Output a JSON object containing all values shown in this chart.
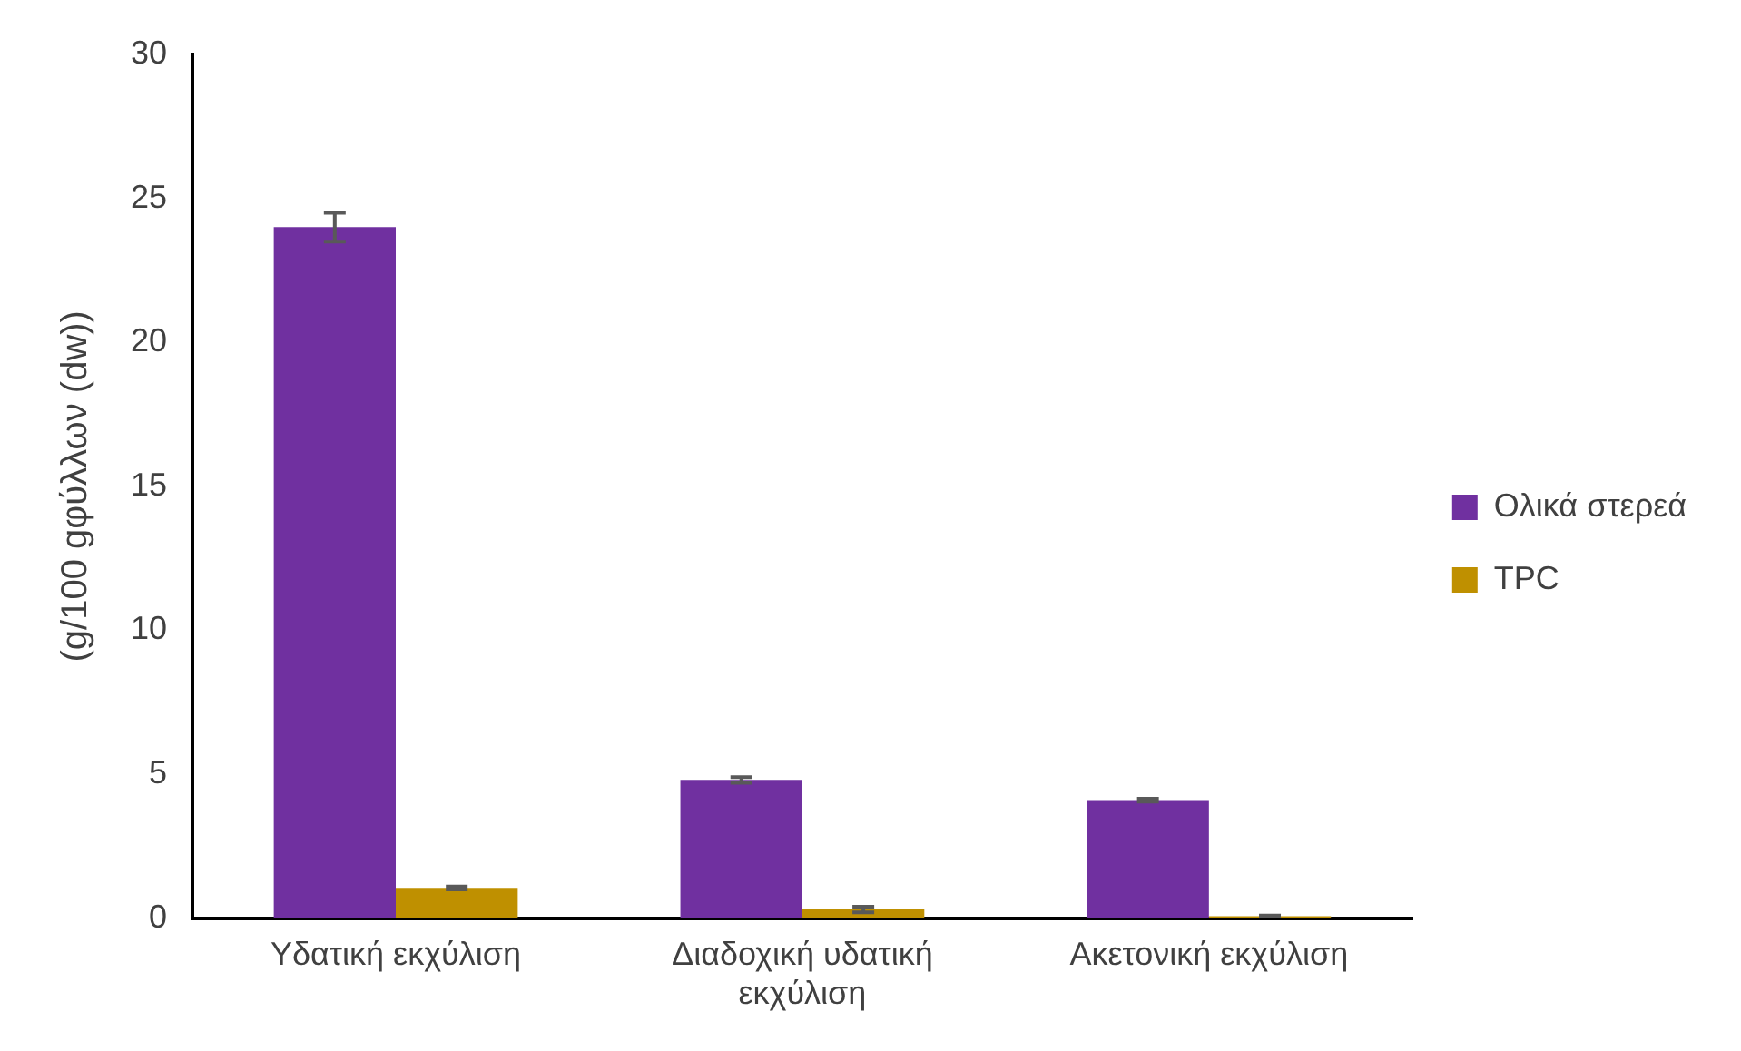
{
  "chart_data": {
    "type": "bar",
    "ylabel": "(g/100 gφύλλων (dw))",
    "categories": [
      "Υδατική εκχύλιση",
      "Διαδοχική υδατική εκχύλιση",
      "Ακετονική εκχύλιση"
    ],
    "series": [
      {
        "name": "Ολικά στερεά",
        "color": "#7030a0",
        "values": [
          24.0,
          4.8,
          4.1
        ],
        "errors": [
          0.5,
          0.1,
          0.05
        ]
      },
      {
        "name": "TPC",
        "color": "#bf9000",
        "values": [
          1.05,
          0.3,
          0.07
        ],
        "errors": [
          0.05,
          0.1,
          0.02
        ]
      }
    ],
    "ylim": [
      0,
      30
    ],
    "yticks": [
      0,
      5,
      10,
      15,
      20,
      25,
      30
    ],
    "grid": false,
    "legend": "right"
  }
}
